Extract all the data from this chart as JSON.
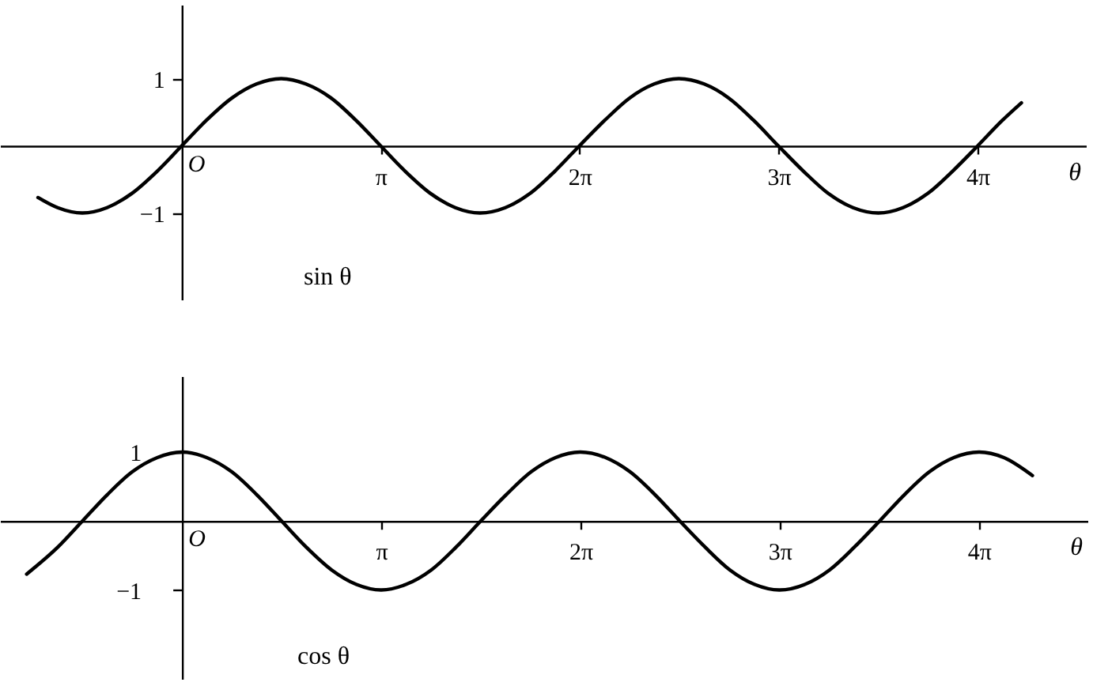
{
  "chart_data": [
    {
      "type": "line",
      "title": "sin θ",
      "xlabel": "θ",
      "xlim": [
        -2.87,
        14.29
      ],
      "ylim": [
        -2.3,
        2.1
      ],
      "xticks": [
        {
          "value": 3.1416,
          "label": "π"
        },
        {
          "value": 6.2832,
          "label": "2π"
        },
        {
          "value": 9.4248,
          "label": "3π"
        },
        {
          "value": 12.5664,
          "label": "4π"
        }
      ],
      "yticks": [
        1,
        {
          "value": -1,
          "label": "−1"
        }
      ],
      "annotations": [
        "O"
      ],
      "x": [
        -2.27,
        -1.96,
        -1.57,
        -1.18,
        -0.79,
        -0.39,
        0,
        0.39,
        0.79,
        1.18,
        1.57,
        1.96,
        2.36,
        2.75,
        3.14,
        3.53,
        3.93,
        4.32,
        4.71,
        5.11,
        5.5,
        5.89,
        6.28,
        6.68,
        7.07,
        7.46,
        7.85,
        8.25,
        8.64,
        9.03,
        9.42,
        9.82,
        10.21,
        10.6,
        11,
        11.39,
        11.78,
        12.17,
        12.57,
        12.96,
        13.26
      ],
      "series": [
        {
          "color": "#000000",
          "values": [
            -0.77,
            -0.92,
            -1,
            -0.92,
            -0.71,
            -0.38,
            0,
            0.38,
            0.71,
            0.92,
            1,
            0.92,
            0.71,
            0.38,
            0,
            -0.38,
            -0.71,
            -0.92,
            -1,
            -0.92,
            -0.71,
            -0.38,
            0,
            0.38,
            0.71,
            0.92,
            1,
            0.92,
            0.71,
            0.38,
            0,
            -0.38,
            -0.71,
            -0.92,
            -1,
            -0.92,
            -0.71,
            -0.38,
            0,
            0.38,
            0.64
          ]
        }
      ]
    },
    {
      "type": "line",
      "title": "cos θ",
      "xlabel": "θ",
      "xlim": [
        -2.87,
        14.29
      ],
      "ylim": [
        -2.3,
        2.1
      ],
      "xticks": [
        {
          "value": 3.1416,
          "label": "π"
        },
        {
          "value": 6.2832,
          "label": "2π"
        },
        {
          "value": 9.4248,
          "label": "3π"
        },
        {
          "value": 12.5664,
          "label": "4π"
        }
      ],
      "yticks": [
        1,
        {
          "value": -1,
          "label": "−1"
        }
      ],
      "annotations": [
        "O"
      ],
      "x": [
        -2.45,
        -1.96,
        -1.57,
        -1.18,
        -0.79,
        -0.39,
        0,
        0.39,
        0.79,
        1.18,
        1.57,
        1.96,
        2.36,
        2.75,
        3.14,
        3.53,
        3.93,
        4.32,
        4.71,
        5.11,
        5.5,
        5.89,
        6.28,
        6.68,
        7.07,
        7.46,
        7.85,
        8.25,
        8.64,
        9.03,
        9.42,
        9.82,
        10.21,
        10.6,
        11,
        11.39,
        11.78,
        12.17,
        12.57,
        12.96,
        13.41
      ],
      "series": [
        {
          "color": "#000000",
          "values": [
            -0.77,
            -0.38,
            0,
            0.38,
            0.71,
            0.92,
            1,
            0.92,
            0.71,
            0.38,
            0,
            -0.38,
            -0.71,
            -0.92,
            -1,
            -0.92,
            -0.71,
            -0.38,
            0,
            0.38,
            0.71,
            0.92,
            1,
            0.92,
            0.71,
            0.38,
            0,
            -0.38,
            -0.71,
            -0.92,
            -1,
            -0.92,
            -0.71,
            -0.38,
            0,
            0.38,
            0.71,
            0.92,
            1,
            0.92,
            0.66
          ]
        }
      ]
    }
  ]
}
